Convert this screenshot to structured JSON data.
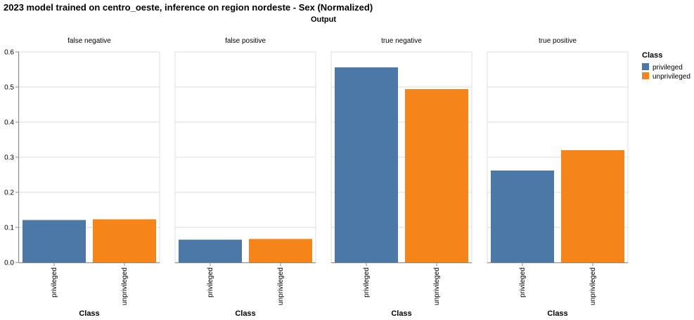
{
  "chart_data": {
    "type": "bar",
    "title": "2023 model trained on centro_oeste, inference on region nordeste - Sex (Normalized)",
    "facet_header": "Output",
    "facets": [
      "false negative",
      "false positive",
      "true negative",
      "true positive"
    ],
    "categories": [
      "privileged",
      "unprivileged"
    ],
    "xlabel": "Class",
    "ylabel": "",
    "ylim": [
      0,
      0.6
    ],
    "yticks": [
      "0.0",
      "0.1",
      "0.2",
      "0.3",
      "0.4",
      "0.5",
      "0.6"
    ],
    "series": [
      {
        "facet": "false negative",
        "values": [
          0.121,
          0.123
        ]
      },
      {
        "facet": "false positive",
        "values": [
          0.065,
          0.067
        ]
      },
      {
        "facet": "true negative",
        "values": [
          0.556,
          0.494
        ]
      },
      {
        "facet": "true positive",
        "values": [
          0.262,
          0.32
        ]
      }
    ],
    "legend": {
      "title": "Class",
      "position": "top-right",
      "items": [
        "privileged",
        "unprivileged"
      ]
    },
    "colors": {
      "privileged": "#4c78a8",
      "unprivileged": "#f58518"
    },
    "grid": true
  }
}
